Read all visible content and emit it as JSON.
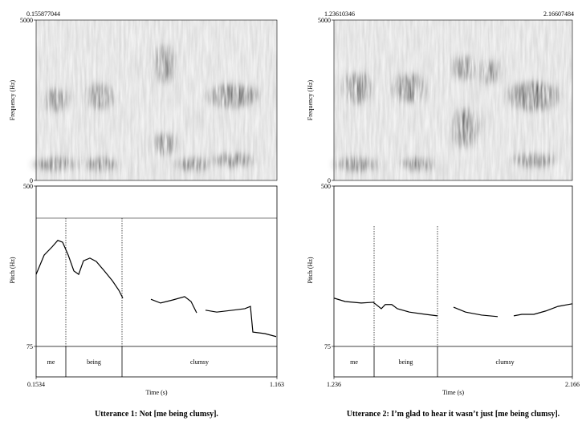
{
  "chart_data": [
    {
      "type": "line",
      "title": "Utterance 1: Not [me being clumsy].",
      "time_labels": [
        "0.155877044"
      ],
      "spectrogram": {
        "ylabel": "Frequency (Hz)",
        "ylim": [
          0,
          5000
        ],
        "yticks": [
          0,
          5000
        ]
      },
      "xlabel": "Time (s)",
      "xlim": [
        0.1534,
        1.163
      ],
      "xticks": [
        0.1534,
        1.163
      ],
      "ylabel": "Pitch (Hz)",
      "ylim": [
        75,
        500
      ],
      "yticks": [
        75,
        500
      ],
      "reference_line": 415,
      "x": [
        0.1534,
        0.1871,
        0.2207,
        0.2443,
        0.2645,
        0.288,
        0.3116,
        0.3318,
        0.352,
        0.3789,
        0.4058,
        0.4395,
        0.4731,
        0.5,
        0.5169,
        null,
        0.6346,
        0.675,
        0.7255,
        0.776,
        0.8029,
        0.8264,
        null,
        0.8635,
        0.9106,
        0.9779,
        1.0284,
        1.0519,
        1.062,
        1.1125,
        1.1596
      ],
      "series": [
        {
          "color": "#000000",
          "values": [
            266,
            317,
            339,
            356,
            351,
            317,
            275,
            266,
            302,
            309,
            300,
            275,
            249,
            224,
            203,
            null,
            200,
            190,
            198,
            207,
            194,
            164,
            null,
            171,
            166,
            171,
            175,
            181,
            113,
            109,
            101
          ]
        }
      ],
      "tier": {
        "boundaries": [
          0.2779,
          0.5135
        ],
        "labels": [
          "me",
          "being",
          "clumsy"
        ]
      }
    },
    {
      "type": "line",
      "title": "Utterance 2: I’m glad to hear it wasn’t just [me being clumsy].",
      "time_labels": [
        "1.23610346",
        "2.16607484"
      ],
      "spectrogram": {
        "ylabel": "Frequency (Hz)",
        "ylim": [
          0,
          5000
        ],
        "yticks": [
          0,
          5000
        ]
      },
      "xlabel": "Time (s)",
      "xlim": [
        1.236,
        2.166
      ],
      "xticks": [
        1.236,
        2.166
      ],
      "ylabel": "Pitch (Hz)",
      "ylim": [
        75,
        500
      ],
      "yticks": [
        75,
        500
      ],
      "x": [
        1.236,
        1.2798,
        1.3425,
        1.3894,
        1.4207,
        1.4364,
        1.4615,
        1.4834,
        1.5303,
        1.593,
        1.6399,
        null,
        1.7026,
        1.7496,
        1.8122,
        1.8748,
        null,
        1.9374,
        1.9687,
        2.0157,
        2.0627,
        2.1096,
        2.166
      ],
      "series": [
        {
          "color": "#000000",
          "values": [
            203,
            194,
            190,
            192,
            175,
            186,
            186,
            175,
            166,
            160,
            156,
            null,
            179,
            166,
            158,
            154,
            null,
            156,
            160,
            160,
            169,
            181,
            188
          ]
        }
      ],
      "tier": {
        "boundaries": [
          1.3926,
          1.64
        ],
        "labels": [
          "me",
          "being",
          "clumsy"
        ]
      }
    }
  ]
}
